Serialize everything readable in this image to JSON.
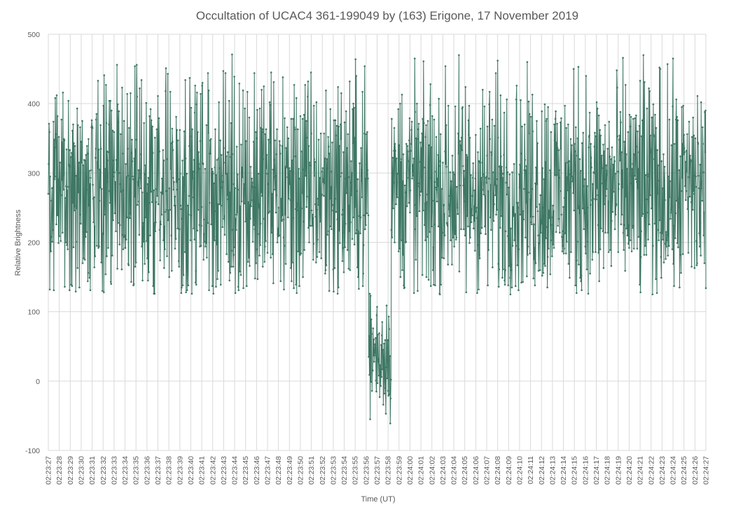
{
  "chart_data": {
    "type": "line",
    "title": "Occultation of UCAC4 361-199049 by (163) Erigone, 17 November 2019",
    "xlabel": "Time (UT)",
    "ylabel": "Relative Brightness",
    "ylim": [
      -100,
      500
    ],
    "yticks": [
      -100,
      0,
      100,
      200,
      300,
      400,
      500
    ],
    "grid": true,
    "legend": "none",
    "x_start": "02:23:27",
    "x_end": "02:24:27",
    "x_ticks": [
      "02:23:27",
      "02:23:28",
      "02:23:29",
      "02:23:30",
      "02:23:31",
      "02:23:32",
      "02:23:33",
      "02:23:34",
      "02:23:35",
      "02:23:36",
      "02:23:37",
      "02:23:38",
      "02:23:39",
      "02:23:40",
      "02:23:41",
      "02:23:42",
      "02:23:43",
      "02:23:44",
      "02:23:45",
      "02:23:46",
      "02:23:47",
      "02:23:48",
      "02:23:49",
      "02:23:50",
      "02:23:51",
      "02:23:52",
      "02:23:53",
      "02:23:54",
      "02:23:55",
      "02:23:56",
      "02:23:57",
      "02:23:58",
      "02:23:59",
      "02:24:00",
      "02:24:01",
      "02:24:02",
      "02:24:03",
      "02:24:04",
      "02:24:05",
      "02:24:06",
      "02:24:07",
      "02:24:08",
      "02:24:09",
      "02:24:10",
      "02:24:11",
      "02:24:12",
      "02:24:13",
      "02:24:14",
      "02:24:15",
      "02:24:16",
      "02:24:17",
      "02:24:18",
      "02:24:19",
      "02:24:20",
      "02:24:21",
      "02:24:22",
      "02:24:23",
      "02:24:24",
      "02:24:25",
      "02:24:26",
      "02:24:27"
    ],
    "series": [
      {
        "color": "#3f7864",
        "samples_per_second": 30,
        "baseline_mean": 275,
        "baseline_range": [
          125,
          477
        ],
        "dip_start": "02:23:56.2",
        "dip_end": "02:23:58.3",
        "dip_mean": 40,
        "dip_range": [
          -65,
          128
        ],
        "values": []
      }
    ]
  }
}
